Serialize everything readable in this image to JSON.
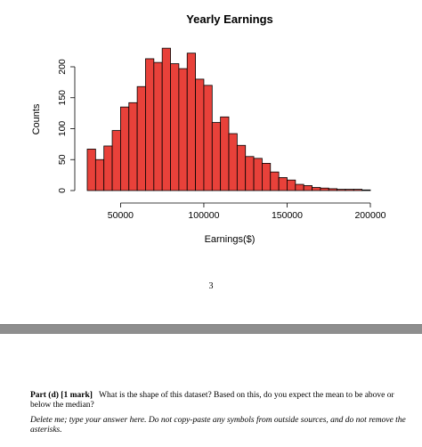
{
  "chart_data": {
    "type": "bar",
    "title": "Yearly Earnings",
    "xlabel": "Earnings($)",
    "ylabel": "Counts",
    "bin_width": 5000,
    "bin_starts": [
      30000,
      35000,
      40000,
      45000,
      50000,
      55000,
      60000,
      65000,
      70000,
      75000,
      80000,
      85000,
      90000,
      95000,
      100000,
      105000,
      110000,
      115000,
      120000,
      125000,
      130000,
      135000,
      140000,
      145000,
      150000,
      155000,
      160000,
      165000,
      170000,
      175000,
      180000,
      185000,
      190000,
      195000
    ],
    "values": [
      67,
      50,
      72,
      97,
      135,
      142,
      168,
      213,
      207,
      230,
      205,
      197,
      222,
      180,
      170,
      110,
      119,
      92,
      73,
      55,
      52,
      44,
      30,
      21,
      17,
      10,
      8,
      5,
      4,
      3,
      2,
      2,
      2,
      1
    ],
    "xlim": [
      30000,
      200000
    ],
    "xticks": [
      50000,
      100000,
      150000,
      200000
    ],
    "xtick_labels": [
      "50000",
      "100000",
      "150000",
      "200000"
    ],
    "yticks": [
      0,
      50,
      100,
      150,
      200
    ],
    "ytick_labels": [
      "0",
      "50",
      "100",
      "150",
      "200"
    ],
    "bar_color": "#e8413a",
    "bar_edge_color": "#000000"
  },
  "page_number": "3",
  "question": {
    "part_label": "Part (d) [1 mark]",
    "text": "What is the shape of this dataset? Based on this, do you expect the mean to be above or below the median?"
  },
  "answer_instructions": "Delete me; type your answer here. Do not copy-paste any symbols from outside sources, and do not remove the asterisks.",
  "colors": {
    "page_separator": "#8e8e8e"
  }
}
